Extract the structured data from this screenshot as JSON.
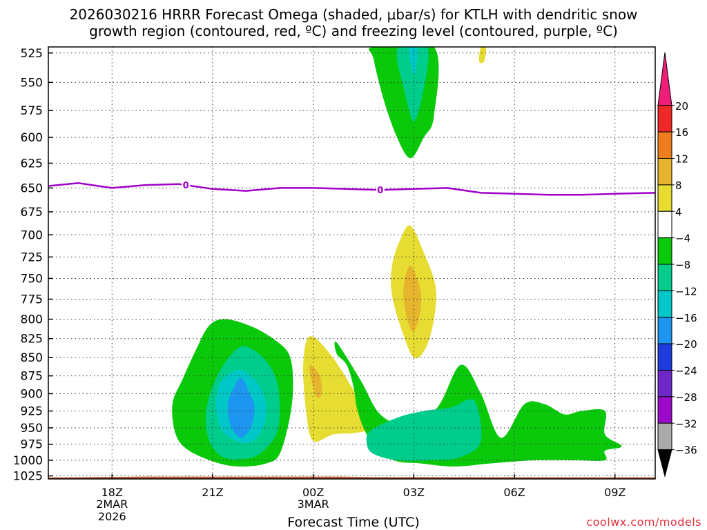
{
  "chart_data": {
    "type": "heatmap",
    "title_line1": "2026030216 HRRR Forecast Omega (shaded, μbar/s) for KTLH with dendritic snow",
    "title_line2": "growth region (contoured, red, ºC) and freezing level (contoured, purple, ºC)",
    "xlabel": "Forecast Time (UTC)",
    "ylabel": "",
    "credit": "coolwx.com/models",
    "x_range_hours": [
      -1.9,
      16.2
    ],
    "y_range_hpa": [
      520,
      1030
    ],
    "y_ticks": [
      "525",
      "550",
      "575",
      "600",
      "625",
      "650",
      "675",
      "700",
      "725",
      "750",
      "775",
      "800",
      "825",
      "850",
      "875",
      "900",
      "925",
      "950",
      "975",
      "1000",
      "1025"
    ],
    "y_tick_values": [
      525,
      550,
      575,
      600,
      625,
      650,
      675,
      700,
      725,
      750,
      775,
      800,
      825,
      850,
      875,
      900,
      925,
      950,
      975,
      1000,
      1025
    ],
    "x_ticks": [
      {
        "hour": 0,
        "label": "18Z",
        "sub1": "2MAR",
        "sub2": "2026"
      },
      {
        "hour": 3,
        "label": "21Z",
        "sub1": "",
        "sub2": ""
      },
      {
        "hour": 6,
        "label": "00Z",
        "sub1": "3MAR",
        "sub2": ""
      },
      {
        "hour": 9,
        "label": "03Z",
        "sub1": "",
        "sub2": ""
      },
      {
        "hour": 12,
        "label": "06Z",
        "sub1": "",
        "sub2": ""
      },
      {
        "hour": 15,
        "label": "09Z",
        "sub1": "",
        "sub2": ""
      }
    ],
    "colorbar": {
      "labels": [
        "20",
        "16",
        "12",
        "8",
        "4",
        "−4",
        "−8",
        "−12",
        "−16",
        "−20",
        "−24",
        "−28",
        "−32",
        "−36"
      ],
      "colors": [
        "#f01e78",
        "#f02828",
        "#ee7d1e",
        "#e6b42d",
        "#e6dc32",
        "#ffffff",
        "#0ac80a",
        "#00cd8c",
        "#00c8c8",
        "#1e96f0",
        "#1e3cdc",
        "#6e28c8",
        "#9b0ac8",
        "#aaaaaa",
        "#000000"
      ]
    },
    "freezing_level": {
      "label": "0",
      "color": "#a000c8",
      "hours": [
        -1.9,
        -1,
        0,
        1,
        2,
        3,
        4,
        5,
        6,
        7,
        8,
        9,
        10,
        11,
        12,
        13,
        14,
        15,
        16.2
      ],
      "pressures": [
        648,
        645,
        650,
        647,
        646,
        651,
        653,
        650,
        650,
        651,
        652,
        651,
        650,
        655,
        656,
        657,
        657,
        656,
        655
      ]
    },
    "ground_color": "#b45a32",
    "omega_regions": [
      {
        "name": "rising-21z-outer",
        "value": -4,
        "color": "#0ac80a",
        "hours": [
          2.9,
          3.4,
          4.2,
          4.9,
          5.3,
          5.4,
          5.3,
          5.0,
          4.6,
          3.9,
          3.2,
          2.3,
          1.9,
          1.8,
          2.1,
          2.5
        ],
        "pressures": [
          808,
          800,
          810,
          828,
          848,
          888,
          935,
          990,
          1005,
          1010,
          1005,
          985,
          960,
          915,
          880,
          840
        ]
      },
      {
        "name": "rising-21z-mid",
        "value": -8,
        "color": "#00cd8c",
        "hours": [
          3.9,
          4.5,
          4.9,
          5.0,
          4.9,
          4.4,
          3.9,
          3.3,
          2.9,
          2.8,
          3.0,
          3.4
        ],
        "pressures": [
          835,
          850,
          880,
          920,
          960,
          990,
          998,
          995,
          970,
          930,
          890,
          855
        ]
      },
      {
        "name": "rising-21z-inner",
        "value": -12,
        "color": "#00c8c8",
        "hours": [
          3.9,
          4.4,
          4.6,
          4.5,
          4.2,
          3.8,
          3.3,
          3.1,
          3.2,
          3.5
        ],
        "pressures": [
          868,
          890,
          920,
          950,
          970,
          972,
          955,
          920,
          888,
          872
        ]
      },
      {
        "name": "rising-21z-core",
        "value": -16,
        "color": "#1e96f0",
        "hours": [
          3.85,
          4.15,
          4.25,
          4.15,
          3.85,
          3.55,
          3.45,
          3.55
        ],
        "pressures": [
          878,
          905,
          920,
          948,
          965,
          948,
          920,
          900
        ]
      },
      {
        "name": "sinking-00z",
        "value": 4,
        "color": "#e6dc32",
        "hours": [
          5.9,
          6.5,
          7.2,
          7.5,
          7.6,
          7.2,
          6.6,
          6.0,
          5.8,
          5.7
        ],
        "pressures": [
          822,
          845,
          895,
          930,
          952,
          958,
          960,
          970,
          930,
          860
        ]
      },
      {
        "name": "sinking-00z-core",
        "value": 8,
        "color": "#e6b42d",
        "hours": [
          5.9,
          6.2,
          6.25,
          6.1,
          5.95
        ],
        "pressures": [
          860,
          875,
          900,
          905,
          880
        ]
      },
      {
        "name": "rising-03z-top",
        "value": -4,
        "color": "#0ac80a",
        "hours": [
          7.8,
          9.6,
          9.6,
          9.3,
          8.9,
          8.5,
          8.1,
          7.8
        ],
        "pressures": [
          520,
          520,
          580,
          600,
          620,
          600,
          565,
          530
        ]
      },
      {
        "name": "rising-03z-top-mid",
        "value": -8,
        "color": "#00cd8c",
        "hours": [
          8.6,
          9.4,
          9.3,
          9.0,
          8.7,
          8.5
        ],
        "pressures": [
          520,
          520,
          555,
          585,
          555,
          530
        ]
      },
      {
        "name": "rising-03z-top-in",
        "value": -12,
        "color": "#00c8c8",
        "hours": [
          8.85,
          9.1,
          9.05,
          8.95
        ],
        "pressures": [
          520,
          520,
          540,
          540
        ]
      },
      {
        "name": "sinking-03z",
        "value": 4,
        "color": "#e6dc32",
        "hours": [
          8.9,
          9.3,
          9.65,
          9.6,
          9.35,
          9.0,
          8.65,
          8.35,
          8.35,
          8.6
        ],
        "pressures": [
          690,
          720,
          760,
          800,
          838,
          850,
          815,
          770,
          735,
          705
        ]
      },
      {
        "name": "sinking-03z-core",
        "value": 8,
        "color": "#e6b42d",
        "hours": [
          8.9,
          9.2,
          9.15,
          8.95,
          8.75,
          8.7
        ],
        "pressures": [
          735,
          765,
          800,
          815,
          790,
          760
        ]
      },
      {
        "name": "sinking-05z",
        "value": 4,
        "color": "#e6dc32",
        "hours": [
          11.0,
          11.15,
          11.1,
          10.95
        ],
        "pressures": [
          520,
          520,
          532,
          532
        ]
      },
      {
        "name": "rising-04z-big",
        "value": -4,
        "color": "#0ac80a",
        "hours": [
          6.7,
          7.4,
          8.0,
          8.8,
          9.7,
          10.4,
          11.0,
          11.6,
          12.3,
          12.9,
          13.5,
          14.0,
          14.7,
          14.7,
          15.2,
          14.7,
          14.7,
          13.8,
          12.6,
          11.3,
          10.2,
          9.2,
          8.4,
          7.8,
          7.5,
          7.3,
          7.2,
          7.0,
          6.7
        ],
        "pressures": [
          830,
          880,
          930,
          945,
          920,
          860,
          900,
          965,
          915,
          915,
          930,
          925,
          925,
          960,
          978,
          985,
          1000,
          1000,
          1000,
          1005,
          1010,
          1005,
          1000,
          975,
          950,
          920,
          890,
          860,
          845
        ]
      },
      {
        "name": "rising-04z-mid",
        "value": -8,
        "color": "#00cd8c",
        "hours": [
          7.7,
          8.5,
          9.3,
          10.1,
          10.8,
          11.0,
          10.4,
          9.5,
          8.5,
          7.8,
          7.6
        ],
        "pressures": [
          955,
          935,
          925,
          920,
          910,
          970,
          995,
          1000,
          1000,
          990,
          975
        ]
      }
    ]
  }
}
